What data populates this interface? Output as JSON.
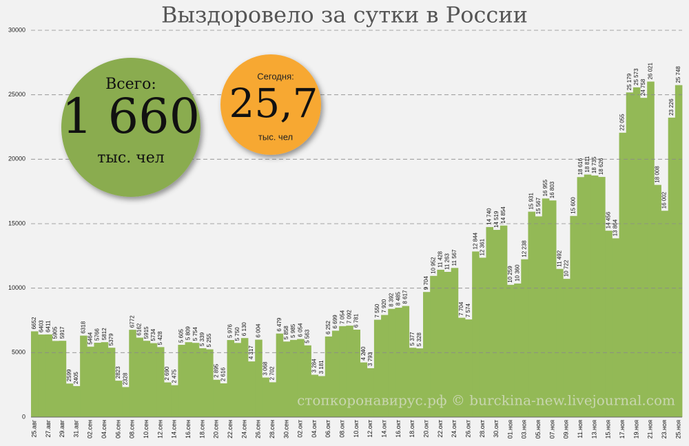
{
  "chart_data": {
    "type": "step",
    "title": "Выздоровело за сутки в России",
    "annotations": [
      "Всего:",
      "1 660",
      "тыс. чел",
      "Сегодня:",
      "25,7",
      "тыс. чел",
      "стопкоронавирус.рф © burckina-new.livejournal.com"
    ],
    "categories": [
      "25.авг",
      null,
      "27.авг",
      null,
      "29.авг",
      null,
      "31.авг",
      null,
      "02.сен",
      null,
      "04.сен",
      null,
      "06.сен",
      null,
      "08.сен",
      null,
      "10.сен",
      null,
      "12.сен",
      null,
      "14.сен",
      null,
      "16.сен",
      null,
      "18.сен",
      null,
      "20.сен",
      null,
      "22.сен",
      null,
      "24.сен",
      null,
      "26.сен",
      null,
      "28.сен",
      null,
      "30.сен",
      null,
      "02.окт",
      null,
      "04.окт",
      null,
      "06.окт",
      null,
      "08.окт",
      null,
      "10.окт",
      null,
      "12.окт",
      null,
      "14.окт",
      null,
      "16.окт",
      null,
      "18.окт",
      null,
      "20.окт",
      null,
      "22.окт",
      null,
      "24.окт",
      null,
      "26.окт",
      null,
      "28.окт",
      null,
      "30.окт",
      null,
      "01.ноя",
      null,
      "03.ноя",
      null,
      "05.ноя",
      null,
      "07.ноя",
      null,
      "09.ноя",
      null,
      "11.ноя",
      null,
      "13.ноя",
      null,
      "15.ноя",
      null,
      "17.ноя",
      null,
      "19.ноя",
      null,
      "21.ноя",
      null,
      "23.ноя",
      null,
      "25.ноя"
    ],
    "values": [
      6652,
      6403,
      6411,
      5905,
      5917,
      2599,
      2405,
      6318,
      5464,
      5766,
      5812,
      5379,
      2823,
      2328,
      6772,
      6162,
      5915,
      5734,
      5428,
      2690,
      2475,
      5605,
      5809,
      5754,
      5339,
      5255,
      2895,
      2616,
      5976,
      5750,
      6130,
      4317,
      6004,
      3068,
      2702,
      6479,
      5858,
      5985,
      6054,
      5563,
      3284,
      3181,
      6252,
      6699,
      7054,
      7092,
      6781,
      4240,
      3793,
      7550,
      7920,
      8392,
      8485,
      8617,
      5377,
      5328,
      9704,
      10952,
      11428,
      11263,
      11567,
      7704,
      7574,
      12844,
      12361,
      14740,
      14519,
      14854,
      10259,
      10360,
      12238,
      15931,
      15567,
      16955,
      16803,
      11492,
      10722,
      15600,
      18616,
      18811,
      18735,
      18626,
      14456,
      13864,
      22055,
      25179,
      25573,
      24758,
      26021,
      18008,
      16002,
      23226,
      25748
    ],
    "value_labels": [
      "6652",
      "6403",
      "6411",
      "5905",
      "5917",
      "2599",
      "2405",
      "6318",
      "5464",
      "5766",
      "5812",
      "5379",
      "2823",
      "2328",
      "6772",
      "6162",
      "5915",
      "5734",
      "5 428",
      "2 690",
      "2 475",
      "5 605",
      "5 809",
      "5 754",
      "5 339",
      "5 255",
      "2 895",
      "2 616",
      "5 976",
      "5 750",
      "6 130",
      "4 317",
      "6 004",
      "3 068",
      "2 702",
      "6 479",
      "5 858",
      "5 985",
      "6 054",
      "5 563",
      "3 284",
      "3 181",
      "6 252",
      "6 699",
      "7 054",
      "7 092",
      "6 781",
      "4 240",
      "3 793",
      "7 550",
      "7 920",
      "8 392",
      "8 485",
      "8 617",
      "5 377",
      "5 328",
      "9 704",
      "10 952",
      "11 428",
      "11 263",
      "11 567",
      "7 704",
      "7 574",
      "12 844",
      "12 361",
      "14 740",
      "14 519",
      "14 854",
      "10 259",
      "10 360",
      "12 238",
      "15 931",
      "15 567",
      "16 955",
      "16 803",
      "11 492",
      "10 722",
      "15 600",
      "18 616",
      "18 811",
      "18 735",
      "18 626",
      "14 456",
      "13 864",
      "22 055",
      "25 179",
      "25 573",
      "24 758",
      "26 021",
      "18 008",
      "16 002",
      "23 226",
      "25 748"
    ],
    "color": "#93b956",
    "ylim": [
      0,
      30000
    ],
    "yticks": [
      0,
      5000,
      10000,
      15000,
      20000,
      25000,
      30000
    ],
    "grid": true
  }
}
